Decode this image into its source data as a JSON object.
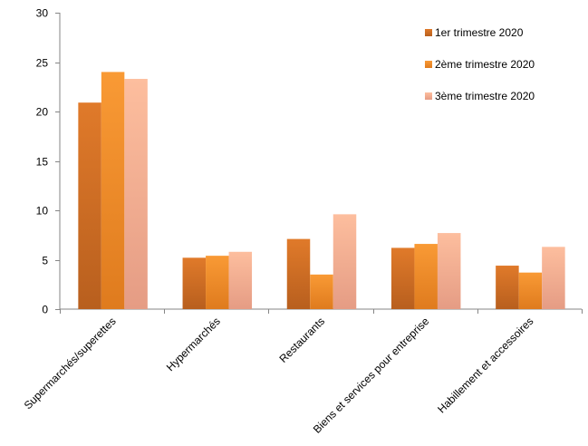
{
  "chart_data": {
    "type": "bar",
    "categories": [
      "Supermarchés/superettes",
      "Hypermarchés",
      "Restaurants",
      "Biens et services pour entreprise",
      "Habillement et accessoires"
    ],
    "series": [
      {
        "name": "1er trimestre 2020",
        "values": [
          20.9,
          5.2,
          7.1,
          6.2,
          4.4
        ],
        "color": "#D2691E"
      },
      {
        "name": "2ème trimestre 2020",
        "values": [
          24.0,
          5.4,
          3.5,
          6.6,
          3.7
        ],
        "color": "#F7902A"
      },
      {
        "name": "3ème trimestre 2020",
        "values": [
          23.3,
          5.8,
          9.6,
          7.7,
          6.3
        ],
        "color": "#F9B48E"
      }
    ],
    "yticks": [
      "0",
      "5",
      "10",
      "15",
      "20",
      "25",
      "30"
    ],
    "ylim": [
      0,
      30
    ],
    "legend_position": "top-right",
    "grid": false
  }
}
